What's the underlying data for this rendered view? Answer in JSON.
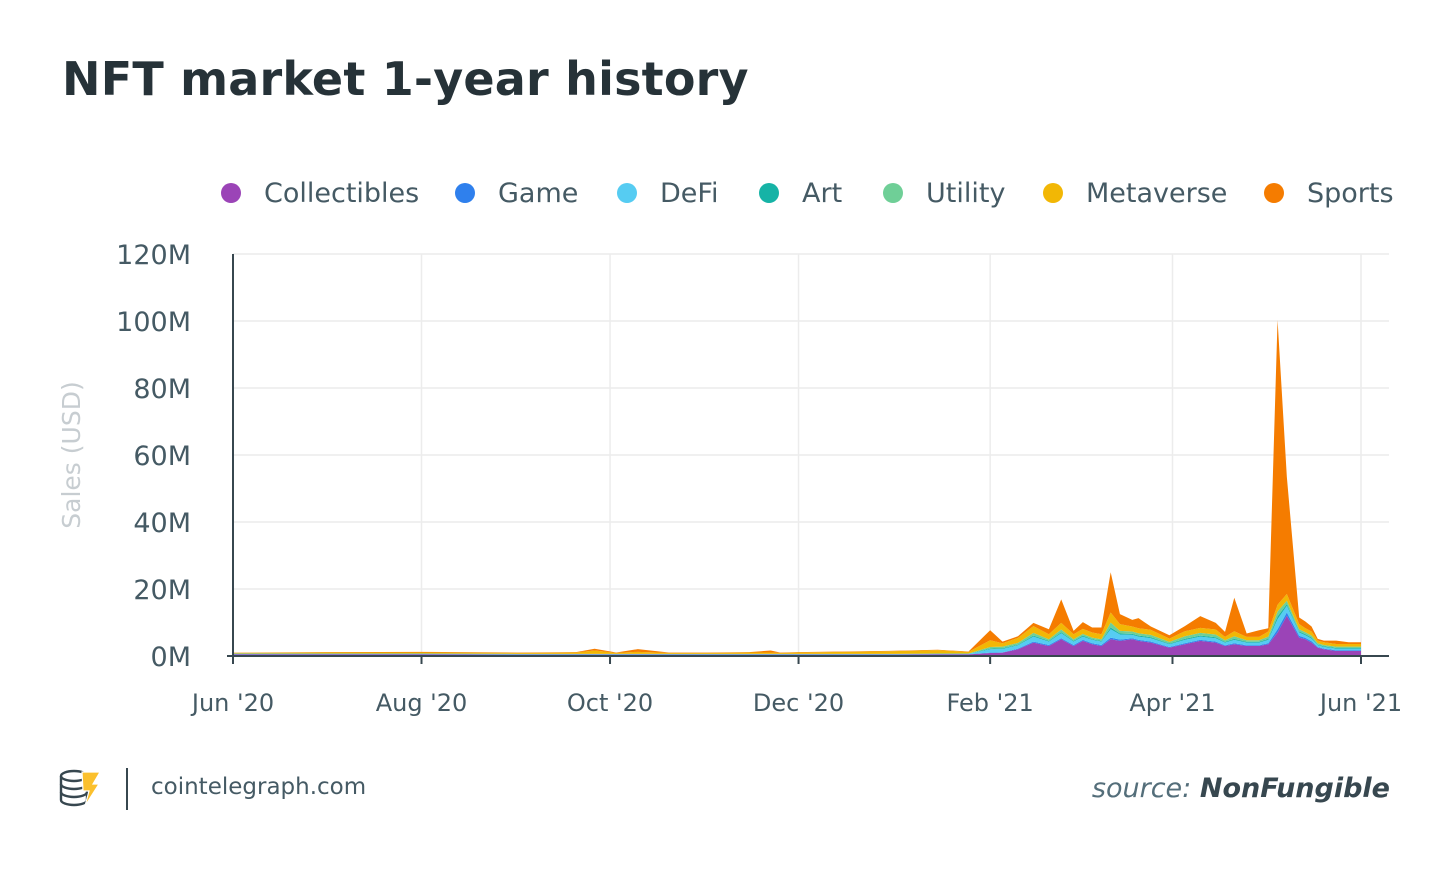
{
  "header": {
    "title": "NFT market 1-year history"
  },
  "footer": {
    "site": "cointelegraph.com",
    "source_prefix": "source:",
    "source_name": "NonFungible"
  },
  "icons": {
    "logo": "cointelegraph-logo-icon"
  },
  "chart_data": {
    "type": "area",
    "stacked": true,
    "title": "NFT market 1-year history",
    "xlabel": "",
    "ylabel": "Sales (USD)",
    "ylim": [
      0,
      120000000
    ],
    "yticks": [
      "0M",
      "20M",
      "40M",
      "60M",
      "80M",
      "100M",
      "120M"
    ],
    "xticks": [
      "Jun '20",
      "Aug '20",
      "Oct '20",
      "Dec '20",
      "Feb '21",
      "Apr '21",
      "Jun '21"
    ],
    "xrange": [
      "2020-06-01",
      "2021-06-01"
    ],
    "grid": true,
    "legend": "top",
    "colors": {
      "Collectibles": "#9b44b7",
      "Game": "#2f80ed",
      "DeFi": "#56ccf2",
      "Art": "#16b3a6",
      "Utility": "#6fcf97",
      "Metaverse": "#f2b705",
      "Sports": "#f57c00"
    },
    "x": [
      "2020-06-01",
      "2020-07-01",
      "2020-08-01",
      "2020-09-01",
      "2020-09-20",
      "2020-09-26",
      "2020-10-03",
      "2020-10-10",
      "2020-10-20",
      "2020-11-01",
      "2020-11-15",
      "2020-11-22",
      "2020-11-25",
      "2020-12-01",
      "2020-12-15",
      "2021-01-01",
      "2021-01-15",
      "2021-01-25",
      "2021-02-01",
      "2021-02-05",
      "2021-02-10",
      "2021-02-15",
      "2021-02-20",
      "2021-02-24",
      "2021-02-28",
      "2021-03-03",
      "2021-03-06",
      "2021-03-09",
      "2021-03-12",
      "2021-03-15",
      "2021-03-19",
      "2021-03-21",
      "2021-03-25",
      "2021-03-31",
      "2021-04-05",
      "2021-04-10",
      "2021-04-15",
      "2021-04-18",
      "2021-04-21",
      "2021-04-25",
      "2021-04-29",
      "2021-05-02",
      "2021-05-05",
      "2021-05-08",
      "2021-05-12",
      "2021-05-14",
      "2021-05-16",
      "2021-05-18",
      "2021-05-20",
      "2021-05-24",
      "2021-05-28",
      "2021-06-01"
    ],
    "series": [
      {
        "name": "Collectibles",
        "values": [
          0.5,
          0.5,
          0.5,
          0.4,
          0.4,
          0.4,
          0.4,
          0.4,
          0.4,
          0.4,
          0.4,
          0.4,
          0.4,
          0.4,
          0.4,
          0.4,
          0.5,
          0.5,
          0.9,
          1.0,
          2.0,
          4.0,
          3.0,
          5.0,
          3.0,
          4.5,
          3.5,
          3.0,
          5.0,
          4.5,
          5.0,
          4.5,
          4.0,
          2.5,
          3.5,
          4.5,
          4.0,
          3.0,
          3.5,
          3.0,
          3.0,
          3.5,
          7.0,
          12.0,
          5.5,
          5.0,
          4.0,
          2.5,
          2.0,
          1.5,
          1.5,
          1.5
        ]
      },
      {
        "name": "Game",
        "values": [
          0.05,
          0.05,
          0.05,
          0.05,
          0.05,
          0.05,
          0.05,
          0.05,
          0.05,
          0.05,
          0.05,
          0.05,
          0.05,
          0.05,
          0.05,
          0.05,
          0.05,
          0.05,
          0.1,
          0.1,
          0.2,
          0.3,
          0.3,
          0.3,
          0.3,
          0.3,
          0.3,
          0.3,
          0.5,
          0.4,
          0.3,
          0.3,
          0.3,
          0.2,
          0.3,
          0.3,
          0.3,
          0.2,
          0.3,
          0.2,
          0.2,
          0.3,
          1.0,
          1.0,
          0.5,
          0.4,
          0.4,
          0.2,
          0.2,
          0.2,
          0.2,
          0.2
        ]
      },
      {
        "name": "DeFi",
        "values": [
          0.1,
          0.1,
          0.1,
          0.1,
          0.1,
          0.1,
          0.1,
          0.1,
          0.1,
          0.1,
          0.1,
          0.1,
          0.1,
          0.1,
          0.1,
          0.1,
          0.1,
          0.1,
          1.0,
          1.0,
          1.0,
          1.5,
          1.0,
          1.5,
          1.0,
          1.0,
          1.0,
          1.0,
          2.5,
          1.5,
          1.0,
          1.0,
          1.0,
          0.8,
          1.0,
          1.0,
          1.0,
          0.8,
          1.0,
          0.8,
          0.8,
          1.0,
          3.0,
          2.0,
          1.0,
          0.8,
          0.8,
          0.5,
          0.5,
          0.5,
          0.5,
          0.5
        ]
      },
      {
        "name": "Art",
        "values": [
          0.05,
          0.05,
          0.05,
          0.05,
          0.05,
          0.05,
          0.05,
          0.05,
          0.05,
          0.05,
          0.05,
          0.05,
          0.05,
          0.05,
          0.05,
          0.05,
          0.05,
          0.05,
          0.2,
          0.2,
          0.2,
          0.3,
          0.2,
          0.3,
          0.2,
          0.3,
          0.2,
          0.2,
          0.5,
          0.3,
          0.3,
          0.3,
          0.3,
          0.2,
          0.3,
          0.3,
          0.3,
          0.2,
          0.3,
          0.2,
          0.2,
          0.3,
          0.8,
          0.5,
          0.3,
          0.3,
          0.3,
          0.2,
          0.2,
          0.2,
          0.2,
          0.2
        ]
      },
      {
        "name": "Utility",
        "values": [
          0.05,
          0.05,
          0.05,
          0.05,
          0.05,
          0.05,
          0.05,
          0.05,
          0.05,
          0.05,
          0.05,
          0.05,
          0.05,
          0.05,
          0.05,
          0.05,
          0.05,
          0.05,
          0.5,
          0.5,
          0.5,
          0.8,
          0.5,
          0.8,
          0.5,
          0.5,
          0.5,
          0.5,
          1.5,
          0.8,
          0.7,
          0.7,
          0.7,
          0.5,
          0.8,
          0.8,
          0.8,
          0.5,
          0.8,
          0.5,
          0.5,
          0.7,
          1.5,
          1.0,
          0.7,
          0.6,
          0.6,
          0.4,
          0.4,
          0.4,
          0.4,
          0.4
        ]
      },
      {
        "name": "Metaverse",
        "values": [
          0.2,
          0.3,
          0.3,
          0.3,
          0.4,
          1.0,
          0.3,
          0.6,
          0.3,
          0.3,
          0.4,
          0.4,
          0.3,
          0.4,
          0.6,
          0.8,
          1.0,
          0.5,
          2.0,
          1.0,
          1.5,
          2.0,
          1.5,
          2.0,
          1.5,
          1.5,
          1.5,
          1.5,
          3.0,
          2.0,
          1.5,
          1.5,
          1.5,
          1.0,
          1.5,
          1.5,
          1.5,
          1.0,
          1.5,
          1.0,
          1.0,
          1.5,
          2.0,
          2.0,
          1.5,
          1.2,
          1.2,
          0.8,
          0.8,
          0.8,
          0.8,
          0.8
        ]
      },
      {
        "name": "Sports",
        "values": [
          0.05,
          0.1,
          0.2,
          0.1,
          0.1,
          0.5,
          0.1,
          0.8,
          0.1,
          0.1,
          0.1,
          0.6,
          0.1,
          0.1,
          0.1,
          0.1,
          0.1,
          0.1,
          3.0,
          0.5,
          0.5,
          1.0,
          1.5,
          7.0,
          1.0,
          2.0,
          1.5,
          2.0,
          12.0,
          3.0,
          2.0,
          3.0,
          1.0,
          1.0,
          1.5,
          3.5,
          2.0,
          1.5,
          10.0,
          1.0,
          2.0,
          1.0,
          85.0,
          35.0,
          2.0,
          2.0,
          1.5,
          0.5,
          0.5,
          1.0,
          0.5,
          0.5
        ]
      }
    ]
  }
}
